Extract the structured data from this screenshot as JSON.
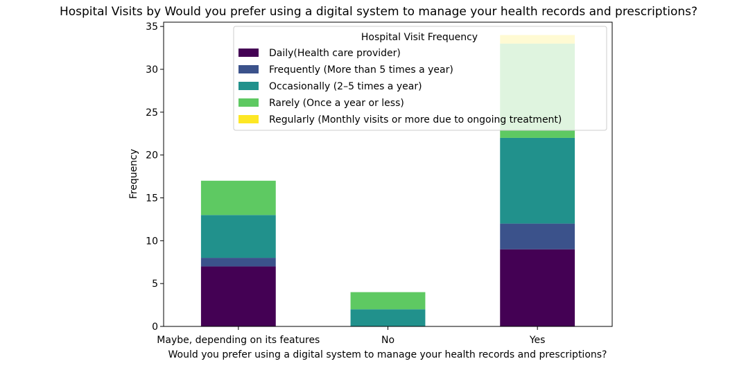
{
  "chart_data": {
    "type": "bar",
    "stacked": true,
    "title": "Hospital Visits by Would you prefer using a digital system to manage your health records and prescriptions?",
    "xlabel": "Would you prefer using a digital system to manage your health records and prescriptions?",
    "ylabel": "Frequency",
    "ylim": [
      0,
      35.5
    ],
    "yticks": [
      0,
      5,
      10,
      15,
      20,
      25,
      30,
      35
    ],
    "categories": [
      "Maybe, depending on its features",
      "No",
      "Yes"
    ],
    "legend_title": "Hospital Visit Frequency",
    "legend_position": "upper right",
    "series": [
      {
        "name": "Daily(Health care provider)",
        "color": "#440154",
        "values": [
          7,
          0,
          9
        ]
      },
      {
        "name": "Frequently (More than 5 times a year)",
        "color": "#3b528b",
        "values": [
          1,
          0,
          3
        ]
      },
      {
        "name": "Occasionally (2–5 times a year)",
        "color": "#21918c",
        "values": [
          5,
          2,
          10
        ]
      },
      {
        "name": "Rarely (Once a year or less)",
        "color": "#5ec962",
        "values": [
          4,
          2,
          11
        ]
      },
      {
        "name": "Regularly (Monthly visits or more due to ongoing treatment)",
        "color": "#fde725",
        "values": [
          0,
          0,
          1
        ]
      }
    ]
  }
}
